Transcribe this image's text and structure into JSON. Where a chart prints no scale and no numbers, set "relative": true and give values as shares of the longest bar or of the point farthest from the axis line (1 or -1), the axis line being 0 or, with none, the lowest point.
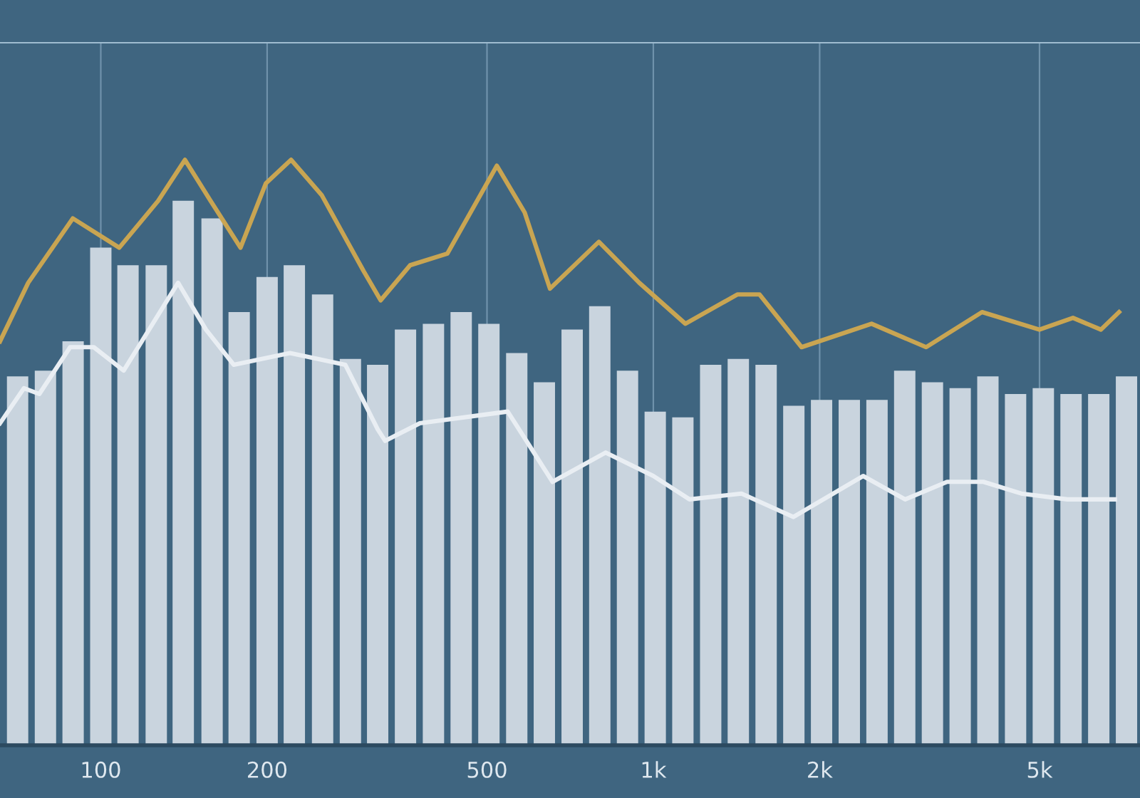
{
  "chart_data": {
    "type": "bar",
    "relative": true,
    "log": "x",
    "grid": "x",
    "xlim": [
      65.7,
      7600
    ],
    "xticks": [
      100,
      200,
      500,
      {
        "value": 1000,
        "label": "1k"
      },
      {
        "value": 2000,
        "label": "2k"
      },
      {
        "value": 5000,
        "label": "5k"
      }
    ],
    "series": [
      {
        "color": "#c9d4de",
        "x": [
          70.7,
          79.4,
          89.1,
          100,
          112,
          126,
          141,
          159,
          178,
          200,
          224,
          252,
          283,
          317,
          356,
          400,
          449,
          504,
          566,
          635,
          713,
          800,
          898,
          1008,
          1131,
          1270,
          1425,
          1600,
          1796,
          2016,
          2263,
          2540,
          2851,
          3200,
          3592,
          4032,
          4525,
          5080,
          5702,
          6400,
          7184
        ],
        "values": [
          0.63,
          0.64,
          0.69,
          0.85,
          0.82,
          0.82,
          0.93,
          0.9,
          0.74,
          0.8,
          0.82,
          0.77,
          0.66,
          0.65,
          0.71,
          0.72,
          0.74,
          0.72,
          0.67,
          0.62,
          0.71,
          0.75,
          0.64,
          0.57,
          0.56,
          0.65,
          0.66,
          0.65,
          0.58,
          0.59,
          0.59,
          0.59,
          0.64,
          0.62,
          0.61,
          0.63,
          0.6,
          0.61,
          0.6,
          0.6,
          0.63
        ]
      },
      {
        "type": "line",
        "color": "#c9a552",
        "x": [
          65.7,
          73.9,
          89,
          108,
          127,
          142,
          158,
          179,
          199,
          221,
          251,
          299,
          321,
          363,
          424,
          521,
          585,
          650,
          797,
          943,
          1143,
          1419,
          1557,
          1855,
          2483,
          3117,
          3935,
          4997,
          5748,
          6458,
          6966
        ],
        "values": [
          0.69,
          0.79,
          0.9,
          0.85,
          0.93,
          1.0,
          0.93,
          0.85,
          0.96,
          1.0,
          0.94,
          0.81,
          0.76,
          0.82,
          0.84,
          0.99,
          0.91,
          0.78,
          0.86,
          0.79,
          0.72,
          0.77,
          0.77,
          0.68,
          0.72,
          0.68,
          0.74,
          0.71,
          0.73,
          0.71,
          0.74
        ]
      },
      {
        "type": "line",
        "color": "#e9eef3",
        "x": [
          65.7,
          72.6,
          77.4,
          88,
          97.1,
          110,
          138,
          155,
          174,
          220,
          277,
          317,
          327,
          378,
          545,
          657,
          820,
          1000,
          1163,
          1444,
          1792,
          2397,
          2856,
          3401,
          3958,
          4633,
          5616,
          6845
        ],
        "values": [
          0.55,
          0.61,
          0.6,
          0.68,
          0.68,
          0.64,
          0.79,
          0.71,
          0.65,
          0.67,
          0.65,
          0.54,
          0.52,
          0.55,
          0.57,
          0.45,
          0.5,
          0.46,
          0.42,
          0.43,
          0.39,
          0.46,
          0.42,
          0.45,
          0.45,
          0.43,
          0.42,
          0.42
        ]
      }
    ]
  }
}
